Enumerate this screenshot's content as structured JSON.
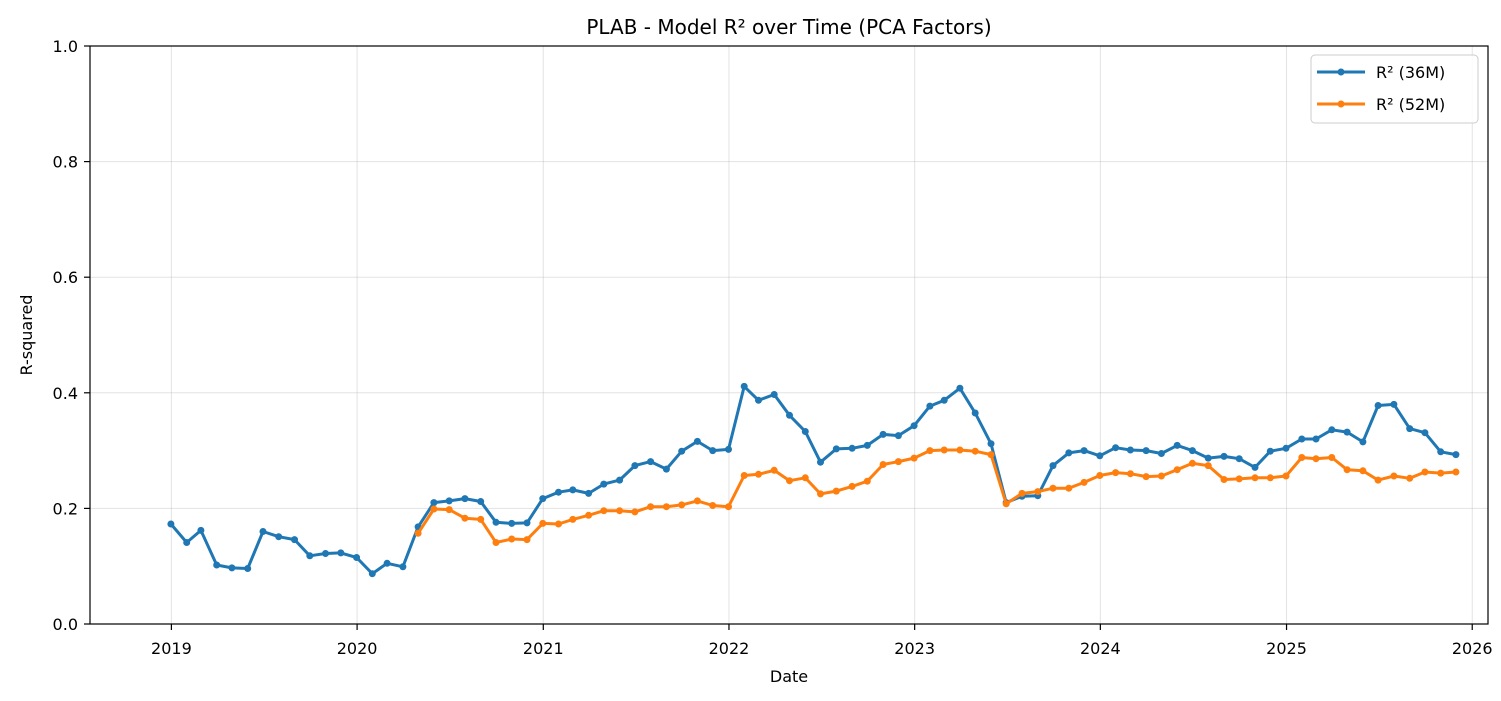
{
  "chart_data": {
    "type": "line",
    "title": "PLAB - Model R² over Time (PCA Factors)",
    "xlabel": "Date",
    "ylabel": "R-squared",
    "ylim": [
      0,
      1
    ],
    "xlim": [
      "2018-07-25",
      "2026-02-01"
    ],
    "x_ticks": [
      "2019",
      "2020",
      "2021",
      "2022",
      "2023",
      "2024",
      "2025",
      "2026"
    ],
    "y_ticks": [
      "0.0",
      "0.2",
      "0.4",
      "0.6",
      "0.8",
      "1.0"
    ],
    "grid": true,
    "legend_position": "top-right",
    "series": [
      {
        "name": "R² (36M)",
        "color": "#1f77b4",
        "start": "2018-12",
        "values": [
          0.173,
          0.141,
          0.162,
          0.102,
          0.097,
          0.096,
          0.16,
          0.151,
          0.146,
          0.118,
          0.122,
          0.123,
          0.115,
          0.087,
          0.105,
          0.099,
          0.168,
          0.21,
          0.213,
          0.217,
          0.212,
          0.176,
          0.174,
          0.175,
          0.217,
          0.228,
          0.232,
          0.226,
          0.242,
          0.249,
          0.274,
          0.281,
          0.268,
          0.299,
          0.316,
          0.3,
          0.302,
          0.411,
          0.387,
          0.397,
          0.361,
          0.333,
          0.28,
          0.303,
          0.304,
          0.309,
          0.328,
          0.326,
          0.343,
          0.377,
          0.387,
          0.408,
          0.365,
          0.312,
          0.21,
          0.221,
          0.222,
          0.274,
          0.296,
          0.3,
          0.291,
          0.305,
          0.301,
          0.3,
          0.295,
          0.309,
          0.3,
          0.287,
          0.29,
          0.286,
          0.271,
          0.299,
          0.304,
          0.32,
          0.32,
          0.336,
          0.332,
          0.315,
          0.378,
          0.38,
          0.338,
          0.331,
          0.298,
          0.293
        ]
      },
      {
        "name": "R² (52M)",
        "color": "#ff7f0e",
        "start": "2020-04",
        "values": [
          0.157,
          0.199,
          0.198,
          0.183,
          0.181,
          0.141,
          0.147,
          0.146,
          0.174,
          0.173,
          0.181,
          0.188,
          0.196,
          0.196,
          0.194,
          0.203,
          0.203,
          0.206,
          0.213,
          0.205,
          0.203,
          0.257,
          0.259,
          0.266,
          0.248,
          0.253,
          0.225,
          0.23,
          0.238,
          0.247,
          0.276,
          0.281,
          0.287,
          0.3,
          0.301,
          0.301,
          0.299,
          0.293,
          0.208,
          0.226,
          0.229,
          0.235,
          0.235,
          0.245,
          0.257,
          0.262,
          0.26,
          0.255,
          0.256,
          0.267,
          0.278,
          0.274,
          0.25,
          0.251,
          0.253,
          0.253,
          0.256,
          0.288,
          0.286,
          0.288,
          0.267,
          0.265,
          0.249,
          0.256,
          0.252,
          0.263,
          0.261,
          0.263
        ]
      }
    ]
  }
}
